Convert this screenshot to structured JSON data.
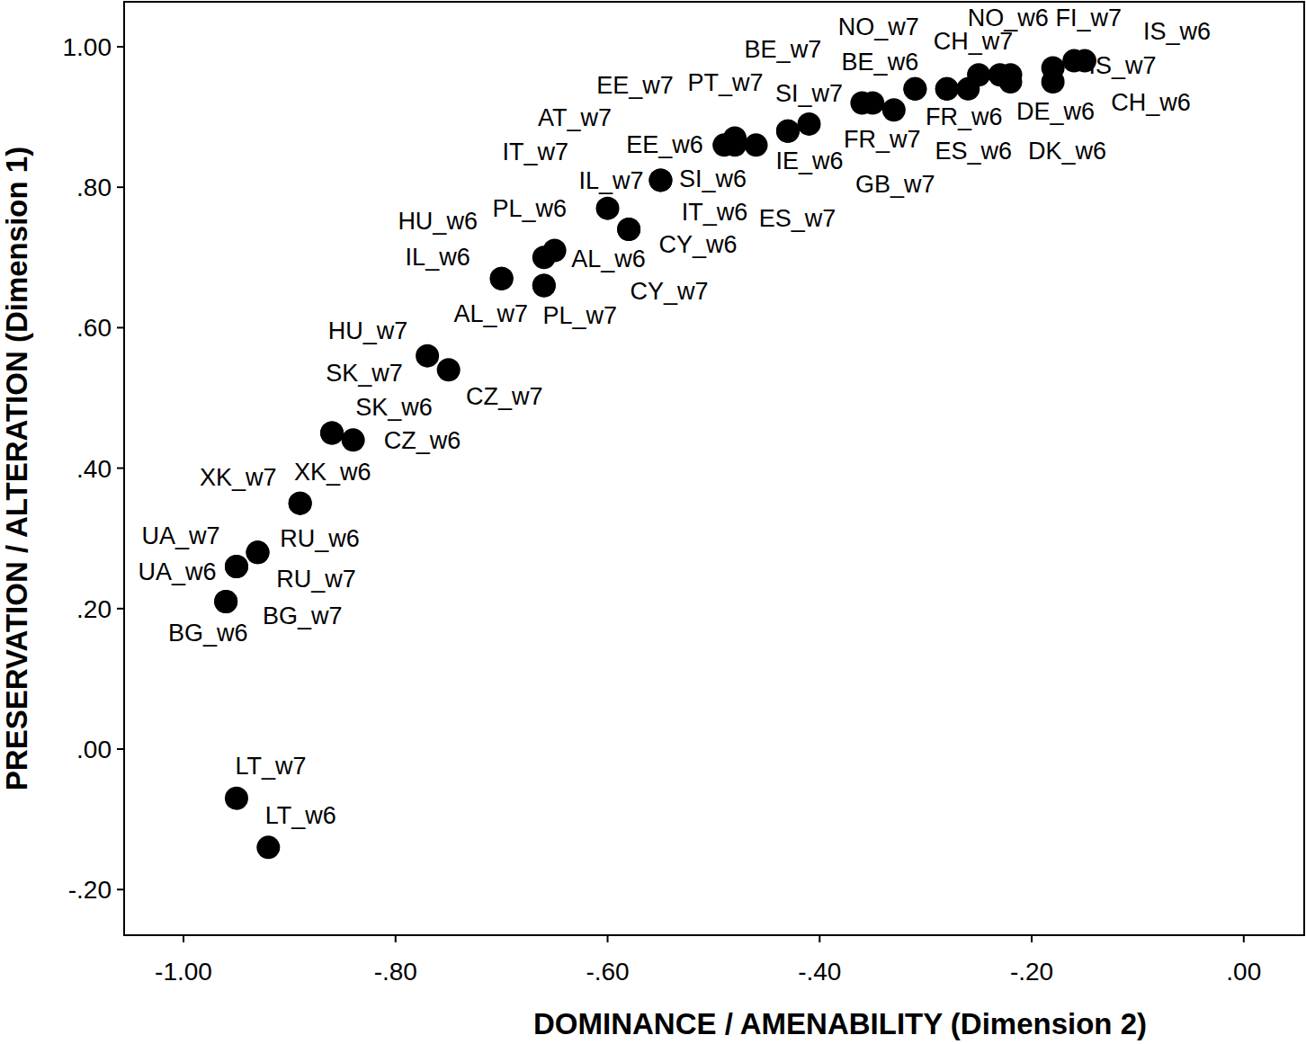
{
  "chart_data": {
    "type": "scatter",
    "x_label": "DOMINANCE / AMENABILITY (Dimension 2)",
    "y_label": "PRESERVATION / ALTERATION (Dimension 1)",
    "labels": [
      "LT_w7",
      "LT_w6",
      "BG_w6",
      "BG_w7",
      "UA_w6",
      "UA_w7",
      "RU_w6",
      "RU_w7",
      "XK_w7",
      "XK_w6",
      "SK_w6",
      "SK_w7",
      "CZ_w6",
      "HU_w7",
      "CZ_w7",
      "HU_w6",
      "IL_w6",
      "AL_w7",
      "PL_w7",
      "PL_w6",
      "AL_w6",
      "CY_w7",
      "IL_w7",
      "SI_w6",
      "IT_w6",
      "IT_w7",
      "AT_w7",
      "EE_w6",
      "ES_w7",
      "EE_w7",
      "IE_w6",
      "PT_w7",
      "SI_w7",
      "GB_w7",
      "FR_w7",
      "BE_w7",
      "BE_w6",
      "FR_w6",
      "NO_w7",
      "ES_w6",
      "CH_w7",
      "NO_w6",
      "DE_w6",
      "DK_w6",
      "CH_w6",
      "FI_w7",
      "IS_w7",
      "IS_w6",
      "CY_w6"
    ],
    "x": [
      -0.95,
      -0.92,
      -0.96,
      -0.96,
      -0.95,
      -0.95,
      -0.93,
      -0.93,
      -0.89,
      -0.89,
      -0.86,
      -0.86,
      -0.84,
      -0.77,
      -0.75,
      -0.7,
      -0.7,
      -0.66,
      -0.66,
      -0.66,
      -0.65,
      -0.58,
      -0.6,
      -0.55,
      -0.55,
      -0.49,
      -0.48,
      -0.48,
      -0.46,
      -0.43,
      -0.43,
      -0.41,
      -0.36,
      -0.35,
      -0.33,
      -0.31,
      -0.31,
      -0.28,
      -0.28,
      -0.26,
      -0.25,
      -0.23,
      -0.22,
      -0.22,
      -0.18,
      -0.16,
      -0.15,
      -0.18,
      -0.58
    ],
    "values": [
      -0.07,
      -0.14,
      0.21,
      0.21,
      0.26,
      0.26,
      0.28,
      0.28,
      0.35,
      0.35,
      0.45,
      0.45,
      0.44,
      0.56,
      0.54,
      0.67,
      0.67,
      0.66,
      0.66,
      0.7,
      0.71,
      0.74,
      0.77,
      0.81,
      0.81,
      0.86,
      0.87,
      0.86,
      0.86,
      0.88,
      0.88,
      0.89,
      0.92,
      0.92,
      0.91,
      0.94,
      0.94,
      0.94,
      0.94,
      0.94,
      0.96,
      0.96,
      0.95,
      0.96,
      0.95,
      0.98,
      0.98,
      0.97,
      0.74
    ],
    "color": "#000000",
    "marker": "circle",
    "xlim": [
      -1.056,
      0.057
    ],
    "ylim": [
      -0.265,
      1.064
    ],
    "xticks": [
      {
        "value": -1.0,
        "label": "-1.00"
      },
      {
        "value": -0.8,
        "label": "-.80"
      },
      {
        "value": -0.6,
        "label": "-.60"
      },
      {
        "value": -0.4,
        "label": "-.40"
      },
      {
        "value": -0.2,
        "label": "-.20"
      },
      {
        "value": 0,
        "label": ".00"
      }
    ],
    "yticks": [
      {
        "value": -0.2,
        "label": "-.20"
      },
      {
        "value": 0,
        "label": ".00"
      },
      {
        "value": 0.2,
        "label": ".20"
      },
      {
        "value": 0.4,
        "label": ".40"
      },
      {
        "value": 0.6,
        "label": ".60"
      },
      {
        "value": 0.8,
        "label": ".80"
      },
      {
        "value": 1.0,
        "label": "1.00"
      }
    ],
    "grid": false
  }
}
